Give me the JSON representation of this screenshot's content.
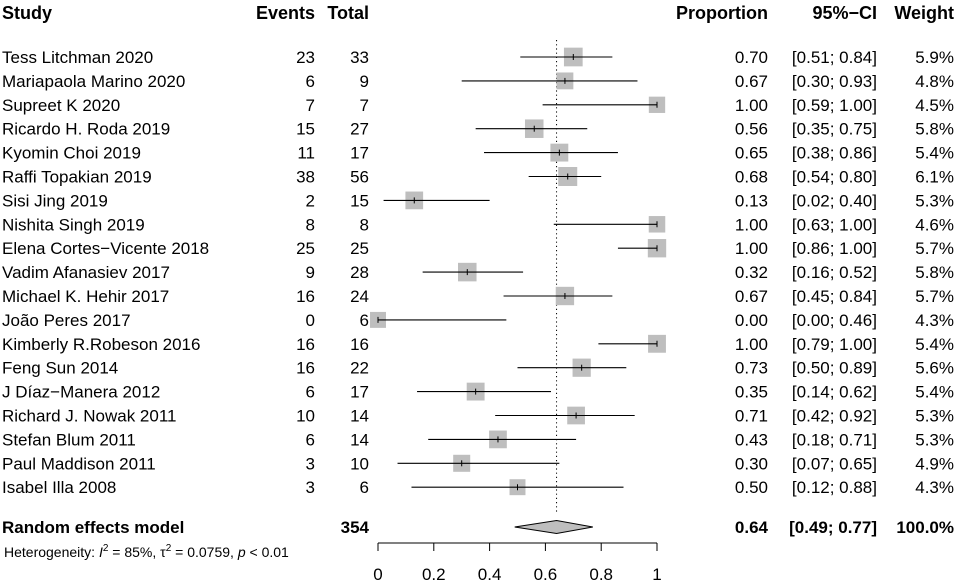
{
  "chart_data": {
    "type": "forest",
    "headers": {
      "study": "Study",
      "events": "Events",
      "total": "Total",
      "proportion": "Proportion",
      "ci": "95%−CI",
      "weight": "Weight"
    },
    "studies": [
      {
        "name": "Tess Litchman 2020",
        "events": "23",
        "total": "33",
        "prop": 0.7,
        "lo": 0.51,
        "hi": 0.84,
        "prop_text": "0.70",
        "ci_text": "[0.51; 0.84]",
        "weight": 5.9,
        "weight_text": "5.9%"
      },
      {
        "name": "Mariapaola Marino 2020",
        "events": "6",
        "total": "9",
        "prop": 0.67,
        "lo": 0.3,
        "hi": 0.93,
        "prop_text": "0.67",
        "ci_text": "[0.30; 0.93]",
        "weight": 4.8,
        "weight_text": "4.8%"
      },
      {
        "name": "Supreet K 2020",
        "events": "7",
        "total": "7",
        "prop": 1.0,
        "lo": 0.59,
        "hi": 1.0,
        "prop_text": "1.00",
        "ci_text": "[0.59; 1.00]",
        "weight": 4.5,
        "weight_text": "4.5%"
      },
      {
        "name": "Ricardo H. Roda 2019",
        "events": "15",
        "total": "27",
        "prop": 0.56,
        "lo": 0.35,
        "hi": 0.75,
        "prop_text": "0.56",
        "ci_text": "[0.35; 0.75]",
        "weight": 5.8,
        "weight_text": "5.8%"
      },
      {
        "name": "Kyomin Choi 2019",
        "events": "11",
        "total": "17",
        "prop": 0.65,
        "lo": 0.38,
        "hi": 0.86,
        "prop_text": "0.65",
        "ci_text": "[0.38; 0.86]",
        "weight": 5.4,
        "weight_text": "5.4%"
      },
      {
        "name": "Raffi Topakian 2019",
        "events": "38",
        "total": "56",
        "prop": 0.68,
        "lo": 0.54,
        "hi": 0.8,
        "prop_text": "0.68",
        "ci_text": "[0.54; 0.80]",
        "weight": 6.1,
        "weight_text": "6.1%"
      },
      {
        "name": "Sisi Jing 2019",
        "events": "2",
        "total": "15",
        "prop": 0.13,
        "lo": 0.02,
        "hi": 0.4,
        "prop_text": "0.13",
        "ci_text": "[0.02; 0.40]",
        "weight": 5.3,
        "weight_text": "5.3%"
      },
      {
        "name": "Nishita Singh 2019",
        "events": "8",
        "total": "8",
        "prop": 1.0,
        "lo": 0.63,
        "hi": 1.0,
        "prop_text": "1.00",
        "ci_text": "[0.63; 1.00]",
        "weight": 4.6,
        "weight_text": "4.6%"
      },
      {
        "name": "Elena Cortes−Vicente 2018",
        "events": "25",
        "total": "25",
        "prop": 1.0,
        "lo": 0.86,
        "hi": 1.0,
        "prop_text": "1.00",
        "ci_text": "[0.86; 1.00]",
        "weight": 5.7,
        "weight_text": "5.7%"
      },
      {
        "name": "Vadim Afanasiev 2017",
        "events": "9",
        "total": "28",
        "prop": 0.32,
        "lo": 0.16,
        "hi": 0.52,
        "prop_text": "0.32",
        "ci_text": "[0.16; 0.52]",
        "weight": 5.8,
        "weight_text": "5.8%"
      },
      {
        "name": "Michael K. Hehir 2017",
        "events": "16",
        "total": "24",
        "prop": 0.67,
        "lo": 0.45,
        "hi": 0.84,
        "prop_text": "0.67",
        "ci_text": "[0.45; 0.84]",
        "weight": 5.7,
        "weight_text": "5.7%"
      },
      {
        "name": "João Peres 2017",
        "events": "0",
        "total": "6",
        "prop": 0.0,
        "lo": 0.0,
        "hi": 0.46,
        "prop_text": "0.00",
        "ci_text": "[0.00; 0.46]",
        "weight": 4.3,
        "weight_text": "4.3%"
      },
      {
        "name": "Kimberly R.Robeson 2016",
        "events": "16",
        "total": "16",
        "prop": 1.0,
        "lo": 0.79,
        "hi": 1.0,
        "prop_text": "1.00",
        "ci_text": "[0.79; 1.00]",
        "weight": 5.4,
        "weight_text": "5.4%"
      },
      {
        "name": "Feng Sun 2014",
        "events": "16",
        "total": "22",
        "prop": 0.73,
        "lo": 0.5,
        "hi": 0.89,
        "prop_text": "0.73",
        "ci_text": "[0.50; 0.89]",
        "weight": 5.6,
        "weight_text": "5.6%"
      },
      {
        "name": "J Díaz−Manera 2012",
        "events": "6",
        "total": "17",
        "prop": 0.35,
        "lo": 0.14,
        "hi": 0.62,
        "prop_text": "0.35",
        "ci_text": "[0.14; 0.62]",
        "weight": 5.4,
        "weight_text": "5.4%"
      },
      {
        "name": "Richard J. Nowak 2011",
        "events": "10",
        "total": "14",
        "prop": 0.71,
        "lo": 0.42,
        "hi": 0.92,
        "prop_text": "0.71",
        "ci_text": "[0.42; 0.92]",
        "weight": 5.3,
        "weight_text": "5.3%"
      },
      {
        "name": "Stefan Blum 2011",
        "events": "6",
        "total": "14",
        "prop": 0.43,
        "lo": 0.18,
        "hi": 0.71,
        "prop_text": "0.43",
        "ci_text": "[0.18; 0.71]",
        "weight": 5.3,
        "weight_text": "5.3%"
      },
      {
        "name": "Paul Maddison 2011",
        "events": "3",
        "total": "10",
        "prop": 0.3,
        "lo": 0.07,
        "hi": 0.65,
        "prop_text": "0.30",
        "ci_text": "[0.07; 0.65]",
        "weight": 4.9,
        "weight_text": "4.9%"
      },
      {
        "name": "Isabel Illa 2008",
        "events": "3",
        "total": "6",
        "prop": 0.5,
        "lo": 0.12,
        "hi": 0.88,
        "prop_text": "0.50",
        "ci_text": "[0.12; 0.88]",
        "weight": 4.3,
        "weight_text": "4.3%"
      }
    ],
    "summary": {
      "label": "Random effects model",
      "total": "354",
      "prop": 0.64,
      "lo": 0.49,
      "hi": 0.77,
      "prop_text": "0.64",
      "ci_text": "[0.49; 0.77]",
      "weight_text": "100.0%"
    },
    "heterogeneity": {
      "prefix": "Heterogeneity: ",
      "i2_symbol": "I",
      "i2_exp": "2",
      "i2_value": " = 85%, ",
      "tau_symbol": "τ",
      "tau_exp": "2",
      "tau_value": " = 0.0759, ",
      "p_symbol": "p",
      "p_value": " < 0.01"
    },
    "x_axis": {
      "range": [
        0,
        1
      ],
      "ticks": [
        0,
        0.2,
        0.4,
        0.6,
        0.8,
        1
      ],
      "tick_labels": [
        "0",
        "0.2",
        "0.4",
        "0.6",
        "0.8",
        "1"
      ]
    },
    "reference_line": 0.64,
    "colors": {
      "square_fill": "#bebebe",
      "diamond_fill": "#bebebe",
      "line": "#000000"
    }
  }
}
